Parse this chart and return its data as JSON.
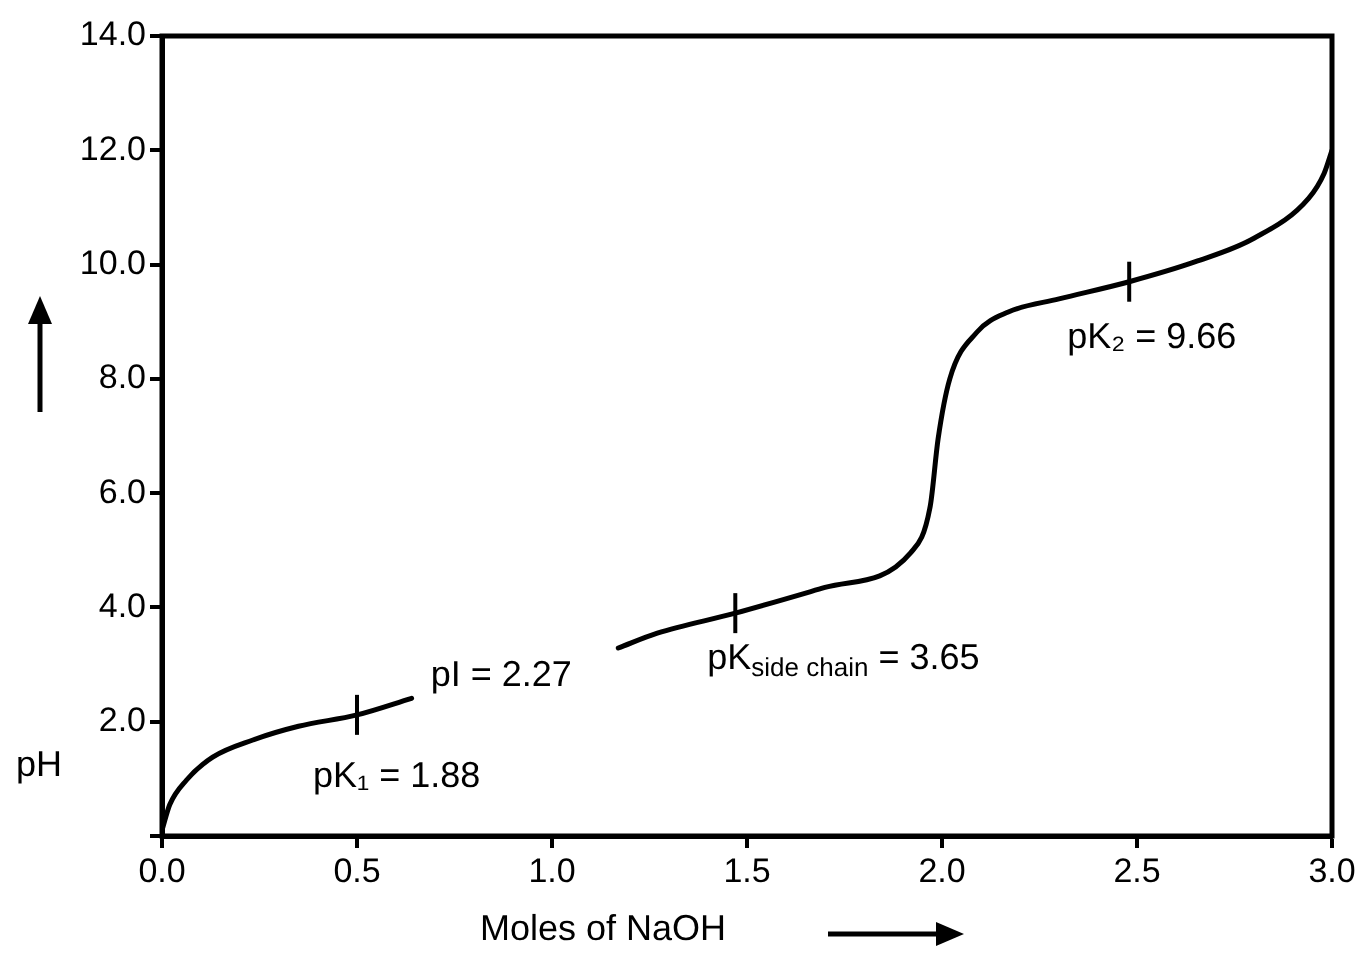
{
  "chart_data": {
    "type": "line",
    "xlabel": "Moles of NaOH",
    "ylabel": "pH",
    "x": [
      0,
      0.02,
      0.063,
      0.13,
      0.233,
      0.35,
      0.5,
      0.64,
      0.9,
      1.17,
      1.27,
      1.47,
      1.7,
      1.92,
      1.97,
      1.99,
      2.02,
      2.09,
      2.17,
      2.3,
      2.48,
      2.65,
      2.8,
      2.94,
      2.98,
      3.0
    ],
    "series": [
      {
        "color": "#000000",
        "values": [
          0.1,
          0.55,
          0.98,
          1.38,
          1.68,
          1.92,
          2.12,
          2.41,
          null,
          3.29,
          3.55,
          3.9,
          4.35,
          4.96,
          5.78,
          6.95,
          8.0,
          8.82,
          9.17,
          9.4,
          9.7,
          10.05,
          10.46,
          11.16,
          11.6,
          12.0
        ]
      }
    ],
    "xlim": [
      0,
      3
    ],
    "ylim": [
      0,
      14
    ],
    "xticks": [
      {
        "value": 0,
        "label": "0.0"
      },
      {
        "value": 0.5,
        "label": "0.5"
      },
      {
        "value": 1,
        "label": "1.0"
      },
      {
        "value": 1.5,
        "label": "1.5"
      },
      {
        "value": 2,
        "label": "2.0"
      },
      {
        "value": 2.5,
        "label": "2.5"
      },
      {
        "value": 3,
        "label": "3.0"
      }
    ],
    "yticks": [
      {
        "value": 0,
        "label": null
      },
      {
        "value": 2,
        "label": "2.0"
      },
      {
        "value": 4,
        "label": "4.0"
      },
      {
        "value": 6,
        "label": "6.0"
      },
      {
        "value": 8,
        "label": "8.0"
      },
      {
        "value": 10,
        "label": "10.0"
      },
      {
        "value": 12,
        "label": "12.0"
      },
      {
        "value": 14,
        "label": "14.0"
      }
    ],
    "annotations": [
      {
        "text": "pK₁ = 1.88",
        "x": 0.5,
        "y": 2.12
      },
      "pI = 2.27",
      {
        "text": "pK$_{side chain}$ = 3.65",
        "x": 1.47,
        "y": 3.9
      },
      {
        "text": "pK₂ = 9.66",
        "x": 2.48,
        "y": 9.7
      }
    ],
    "grid": false,
    "legend": false,
    "marker": "none",
    "line_style": "solid"
  }
}
